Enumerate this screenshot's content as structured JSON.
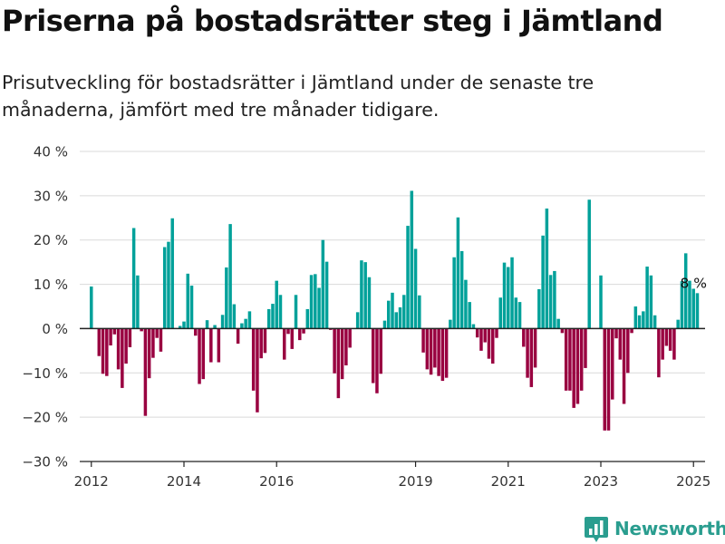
{
  "title": "Priserna på bostadsrätter steg i Jämtland",
  "subtitle": "Prisutveckling för bostadsrätter i Jämtland under de senaste tre månaderna, jämfört med tre månader tidigare.",
  "brand": {
    "name": "Newsworthy",
    "logo_icon": "bar-chart-icon",
    "color": "#2a9d8f"
  },
  "colors": {
    "positive": "#00a19a",
    "negative": "#990040",
    "grid": "#d9d9d9",
    "axis": "#222222"
  },
  "chart_data": {
    "type": "bar",
    "title": "Priserna på bostadsrätter steg i Jämtland",
    "subtitle": "Prisutveckling för bostadsrätter i Jämtland under de senaste tre månaderna, jämfört med tre månader tidigare.",
    "xlabel": "",
    "ylabel": "",
    "ylim": [
      -30,
      40
    ],
    "xlim": [
      2011.75,
      2025.25
    ],
    "yticks": [
      -30,
      -20,
      -10,
      0,
      10,
      20,
      30,
      40
    ],
    "ytick_labels": [
      "−30 %",
      "−20 %",
      "−10 %",
      "0 %",
      "10 %",
      "20 %",
      "30 %",
      "40 %"
    ],
    "xticks": [
      2012,
      2014,
      2016,
      2019,
      2021,
      2023,
      2025
    ],
    "xtick_labels": [
      "2012",
      "2014",
      "2016",
      "2019",
      "2021",
      "2023",
      "2025"
    ],
    "grid": true,
    "annotation": {
      "text": "8 %",
      "x": 2025.0,
      "y": 8
    },
    "start": "2012-01",
    "interval": "month",
    "values": [
      9.5,
      0,
      -6.2,
      -10.2,
      -10.7,
      -3.8,
      -1.3,
      -9.2,
      -13.4,
      -7.9,
      -4.2,
      22.7,
      12.0,
      -0.6,
      -19.7,
      -11.2,
      -6.6,
      -2.1,
      -5.2,
      18.4,
      19.6,
      24.9,
      0,
      0.6,
      1.6,
      12.4,
      9.7,
      -1.6,
      -12.5,
      -11.4,
      1.9,
      -7.6,
      0.8,
      -7.6,
      3.1,
      13.8,
      23.6,
      5.5,
      -3.4,
      1.2,
      2.2,
      3.9,
      -14.0,
      -18.9,
      -6.7,
      -5.5,
      4.4,
      5.6,
      10.8,
      7.6,
      -7.0,
      -1.2,
      -4.6,
      7.6,
      -2.6,
      -1.1,
      4.4,
      12.1,
      12.3,
      9.2,
      20.0,
      15.1,
      -0.3,
      -10.1,
      -15.7,
      -11.4,
      -8.3,
      -4.3,
      0,
      3.7,
      15.4,
      15.0,
      11.6,
      -12.3,
      -14.6,
      -10.2,
      1.8,
      6.3,
      8.1,
      3.7,
      4.8,
      7.6,
      23.2,
      31.1,
      18.0,
      7.5,
      -5.4,
      -9.2,
      -10.4,
      -8.8,
      -10.7,
      -11.8,
      -11.1,
      2.0,
      16.1,
      25.1,
      17.5,
      11.0,
      6.0,
      1.0,
      -2.0,
      -5.0,
      -3.1,
      -6.8,
      -7.9,
      -2.1,
      7.0,
      14.9,
      13.9,
      16.1,
      7.0,
      6.0,
      -4.1,
      -11.1,
      -13.2,
      -8.8,
      8.9,
      21.0,
      27.1,
      12.1,
      13.0,
      2.2,
      -1.0,
      -14.0,
      -14.0,
      -17.9,
      -17.0,
      -14.0,
      -8.9,
      29.1,
      0,
      0,
      12.0,
      -23.0,
      -23.0,
      -16.0,
      -2.2,
      -7.0,
      -17.0,
      -10.0,
      -1.0,
      5.0,
      3.0,
      3.9,
      14.0,
      12.0,
      3.0,
      -11.0,
      -7.0,
      -3.9,
      -5.0,
      -7.0,
      2.0,
      10.7,
      17.0,
      10.8,
      9.0,
      8.0
    ]
  }
}
